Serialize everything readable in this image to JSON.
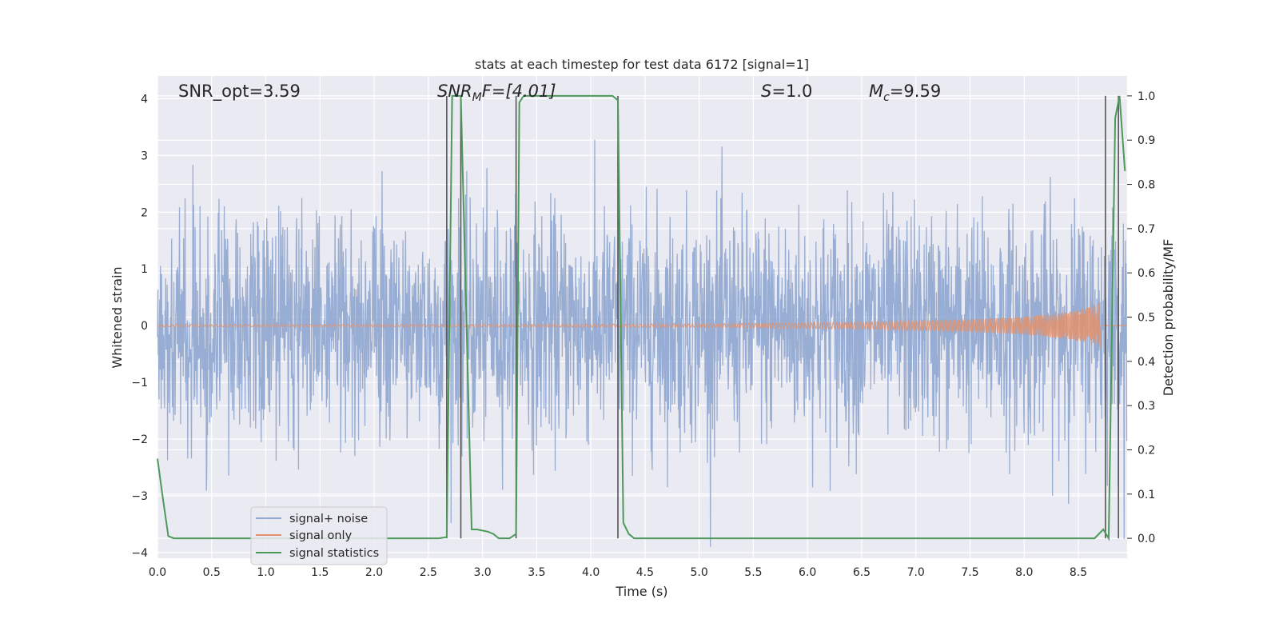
{
  "chart_data": {
    "type": "line",
    "title": "stats at each timestep for test data 6172 [signal=1]",
    "xlabel": "Time (s)",
    "ylabel": "Whitened strain",
    "y2label": "Detection probability/MF",
    "xlim": [
      0,
      8.95
    ],
    "ylim": [
      -4.1,
      4.4
    ],
    "y2lim": [
      -0.045,
      1.045
    ],
    "grid": true,
    "legend_position": "lower-left",
    "x_ticks": [
      "0.0",
      "0.5",
      "1.0",
      "1.5",
      "2.0",
      "2.5",
      "3.0",
      "3.5",
      "4.0",
      "4.5",
      "5.0",
      "5.5",
      "6.0",
      "6.5",
      "7.0",
      "7.5",
      "8.0",
      "8.5"
    ],
    "y_ticks": [
      "−4",
      "−3",
      "−2",
      "−1",
      "0",
      "1",
      "2",
      "3",
      "4"
    ],
    "y2_ticks": [
      "0.0",
      "0.1",
      "0.2",
      "0.3",
      "0.4",
      "0.5",
      "0.6",
      "0.7",
      "0.8",
      "0.9",
      "1.0"
    ],
    "annotations": {
      "snr_opt": "SNR_opt=3.59",
      "snr_mf_base": "SNR",
      "snr_mf_sub": "M",
      "snr_mf_rest": "F=[4.01]",
      "s_var": "S",
      "s_rest": "=1.0",
      "mc_base": "M",
      "mc_sub": "c",
      "mc_rest": "=9.59"
    },
    "series": [
      {
        "name": "signal+ noise",
        "color": "#8fa6cf",
        "description": "whitened strain noise, approx. gaussian sigma ~1, peaks to about ±3.5",
        "sigma": 1.0,
        "x_range": [
          0,
          8.95
        ]
      },
      {
        "name": "signal only",
        "color": "#e1926f",
        "description": "chirp signal, amplitude grows toward merger",
        "envelope": {
          "x": [
            0,
            3.0,
            5.0,
            6.5,
            7.5,
            8.0,
            8.4,
            8.6,
            8.7,
            8.71,
            8.95
          ],
          "y": [
            0.02,
            0.02,
            0.03,
            0.06,
            0.11,
            0.16,
            0.24,
            0.32,
            0.42,
            0,
            0
          ]
        }
      },
      {
        "name": "signal statistics",
        "color": "#4c9a5a",
        "axis": "right",
        "x": [
          0,
          0.05,
          0.1,
          0.15,
          2.6,
          2.67,
          2.72,
          2.8,
          2.9,
          2.95,
          3.05,
          3.1,
          3.15,
          3.25,
          3.31,
          3.34,
          3.38,
          3.45,
          4.2,
          4.25,
          4.3,
          4.35,
          4.4,
          8.65,
          8.73,
          8.78,
          8.84,
          8.88,
          8.93
        ],
        "y": [
          0.18,
          0.09,
          0.005,
          0.0,
          0.0,
          0.003,
          1.0,
          1.0,
          0.02,
          0.02,
          0.015,
          0.01,
          0.0,
          0.0,
          0.01,
          0.985,
          1.0,
          1.0,
          1.0,
          0.99,
          0.035,
          0.01,
          0.0,
          0.0,
          0.02,
          0.0,
          0.95,
          1.0,
          0.83
        ]
      }
    ],
    "vertical_markers": {
      "color": "#555555",
      "x": [
        2.67,
        2.8,
        3.31,
        4.25,
        8.75,
        8.87
      ]
    }
  }
}
